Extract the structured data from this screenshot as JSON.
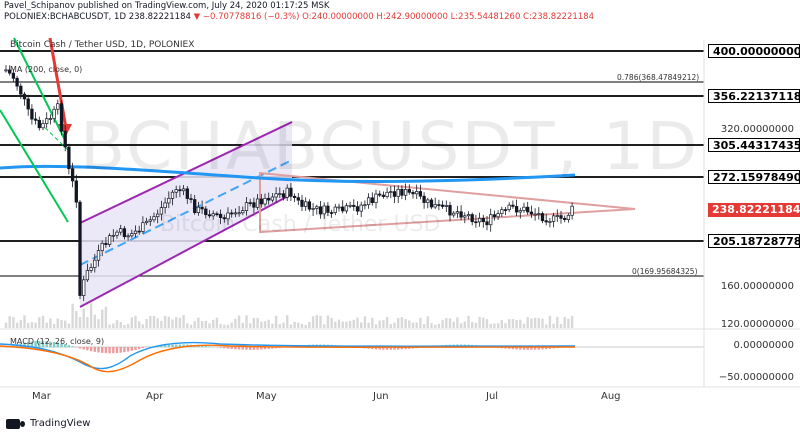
{
  "header": {
    "publish_line": "Pavel_Schipanov published on TradingView.com, July 24, 2020 01:17:25 MSK",
    "symbol_info": "POLONIEX:BCHABCUSDT, 1D",
    "last_price": "238.82221184",
    "change": "▼ −0.70778816 (−0.3%)",
    "ohlc": "O:240.00000000 H:242.90000000 L:235.54481260 C:238.82221184"
  },
  "chart_title": "Bitcoin Cash / Tether USD, 1D, POLONIEX",
  "watermark": {
    "symbol": "BCHABCUSDT, 1D",
    "name": "Bitcoin Cash / Tether USD"
  },
  "ma_label": "MA (200, close, 0)",
  "macd_label": "MACD (12, 26, close, 9)",
  "fib_labels": {
    "top": "0.786(368.47849212)",
    "bottom": "0(169.95684325)"
  },
  "price_tags": [
    {
      "text": "400.00000000",
      "style": "dark"
    },
    {
      "text": "356.22137118",
      "style": "dark"
    },
    {
      "text": "305.44317435",
      "style": "dark"
    },
    {
      "text": "272.15978490",
      "style": "dark"
    },
    {
      "text": "238.82221184",
      "style": "red"
    },
    {
      "text": "205.18728778",
      "style": "dark"
    }
  ],
  "axis_labels": [
    "320.00000000",
    "160.00000000",
    "120.00000000",
    "0.00000000",
    "−50.00000000"
  ],
  "months": [
    "Mar",
    "Apr",
    "May",
    "Jun",
    "Jul",
    "Aug"
  ],
  "brand": "TradingView",
  "colors": {
    "candle": "#131722",
    "channel": "#9c27b0",
    "channel_fill": "#e8e4f7",
    "ma200": "#2196f3",
    "triangle": "#e0a0a0",
    "green_line": "#00c853",
    "red_arrow": "#e53935",
    "dashed_line": "#42a5f5",
    "macd_line": "#2196f3",
    "signal_line": "#ff6d00"
  }
}
